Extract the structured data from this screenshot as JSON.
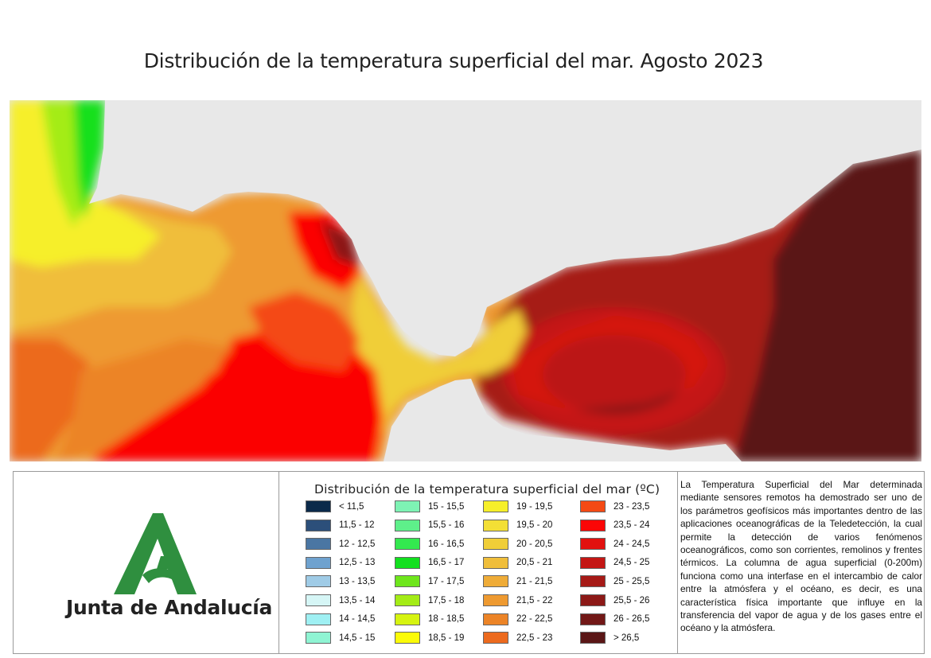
{
  "title": "Distribución de la temperatura superficial del mar. Agosto 2023",
  "map": {
    "land_color": "#e8e8e8",
    "temperature_zones_note": ""
  },
  "logo": {
    "text": "Junta de Andalucía",
    "brand_color": "#2f8f3f"
  },
  "legend": {
    "title": "Distribución de la temperatura superficial del mar (ºC)",
    "columns": [
      [
        {
          "label": "< 11,5",
          "color": "#0b2a4a"
        },
        {
          "label": "11,5 - 12",
          "color": "#2c4f7a"
        },
        {
          "label": "12 - 12,5",
          "color": "#4a76a3"
        },
        {
          "label": "12,5 - 13",
          "color": "#6fa2cf"
        },
        {
          "label": "13 - 13,5",
          "color": "#9fcbe6"
        },
        {
          "label": "13,5 - 14",
          "color": "#d6f6f6"
        },
        {
          "label": "14 - 14,5",
          "color": "#9ff0f3"
        },
        {
          "label": "14,5 - 15",
          "color": "#8ff4d3"
        }
      ],
      [
        {
          "label": "15 - 15,5",
          "color": "#7ef3b4"
        },
        {
          "label": "15,5 - 16",
          "color": "#5ef08a"
        },
        {
          "label": "16 - 16,5",
          "color": "#33e84f"
        },
        {
          "label": "16,5 - 17",
          "color": "#12e01e"
        },
        {
          "label": "17 - 17,5",
          "color": "#6ee61c"
        },
        {
          "label": "17,5 - 18",
          "color": "#a4ec16"
        },
        {
          "label": "18 - 18,5",
          "color": "#d6f410"
        },
        {
          "label": "18,5 - 19",
          "color": "#fbfb08"
        }
      ],
      [
        {
          "label": "19 - 19,5",
          "color": "#f6ef2a"
        },
        {
          "label": "19,5 - 20",
          "color": "#f3df35"
        },
        {
          "label": "20 - 20,5",
          "color": "#f0ce38"
        },
        {
          "label": "20,5 - 21",
          "color": "#f0be3a"
        },
        {
          "label": "21 - 21,5",
          "color": "#efac38"
        },
        {
          "label": "21,5 - 22",
          "color": "#ee9a31"
        },
        {
          "label": "22 - 22,5",
          "color": "#ec8427"
        },
        {
          "label": "22,5 - 23",
          "color": "#ec6a1e"
        }
      ],
      [
        {
          "label": "23 - 23,5",
          "color": "#f44a14"
        },
        {
          "label": "23,5 - 24",
          "color": "#fb0606"
        },
        {
          "label": "24 - 24,5",
          "color": "#e2110f"
        },
        {
          "label": "24,5 - 25",
          "color": "#c41614"
        },
        {
          "label": "25 - 25,5",
          "color": "#a61a17"
        },
        {
          "label": "25,5 - 26",
          "color": "#8c1917"
        },
        {
          "label": "26 - 26,5",
          "color": "#721817"
        },
        {
          "label": "> 26,5",
          "color": "#5a1616"
        }
      ]
    ]
  },
  "description": "La Temperatura Superficial del Mar determinada mediante sensores remotos ha demostrado ser uno de los parámetros geofísicos más importantes dentro de las aplicaciones oceanográficas de la Teledetección, la cual permite la detección de varios fenómenos oceanográficos, como son corrientes, remolinos y frentes térmicos. La columna de agua superficial (0-200m) funciona como una interfase en el intercambio de calor entre la atmósfera y el océano, es decir, es una característica física importante que influye en la transferencia del vapor de agua y de los gases entre el océano y la atmósfera."
}
